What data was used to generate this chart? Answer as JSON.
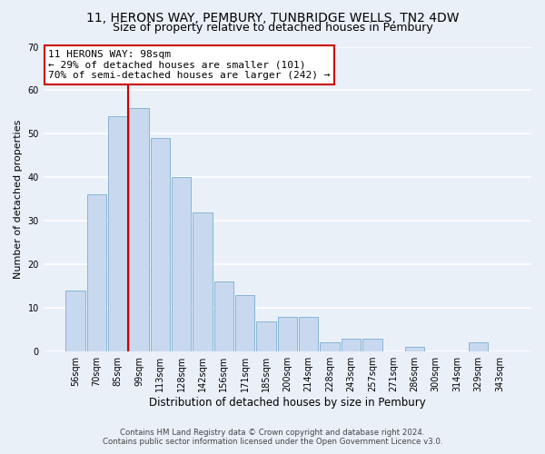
{
  "title": "11, HERONS WAY, PEMBURY, TUNBRIDGE WELLS, TN2 4DW",
  "subtitle": "Size of property relative to detached houses in Pembury",
  "xlabel": "Distribution of detached houses by size in Pembury",
  "ylabel": "Number of detached properties",
  "bar_labels": [
    "56sqm",
    "70sqm",
    "85sqm",
    "99sqm",
    "113sqm",
    "128sqm",
    "142sqm",
    "156sqm",
    "171sqm",
    "185sqm",
    "200sqm",
    "214sqm",
    "228sqm",
    "243sqm",
    "257sqm",
    "271sqm",
    "286sqm",
    "300sqm",
    "314sqm",
    "329sqm",
    "343sqm"
  ],
  "bar_values": [
    14,
    36,
    54,
    56,
    49,
    40,
    32,
    16,
    13,
    7,
    8,
    8,
    2,
    3,
    3,
    0,
    1,
    0,
    0,
    2,
    0
  ],
  "bar_color": "#c8d9ef",
  "bar_edge_color": "#7aadcf",
  "vline_color": "#cc0000",
  "annotation_text": "11 HERONS WAY: 98sqm\n← 29% of detached houses are smaller (101)\n70% of semi-detached houses are larger (242) →",
  "annotation_box_facecolor": "#ffffff",
  "annotation_box_edgecolor": "#cc0000",
  "ylim": [
    0,
    70
  ],
  "yticks": [
    0,
    10,
    20,
    30,
    40,
    50,
    60,
    70
  ],
  "footer_line1": "Contains HM Land Registry data © Crown copyright and database right 2024.",
  "footer_line2": "Contains public sector information licensed under the Open Government Licence v3.0.",
  "bg_color": "#eaf0f8",
  "grid_color": "#ffffff",
  "title_fontsize": 10,
  "subtitle_fontsize": 9,
  "tick_fontsize": 7,
  "ylabel_fontsize": 8,
  "xlabel_fontsize": 8.5,
  "annotation_fontsize": 8,
  "footer_fontsize": 6.2
}
